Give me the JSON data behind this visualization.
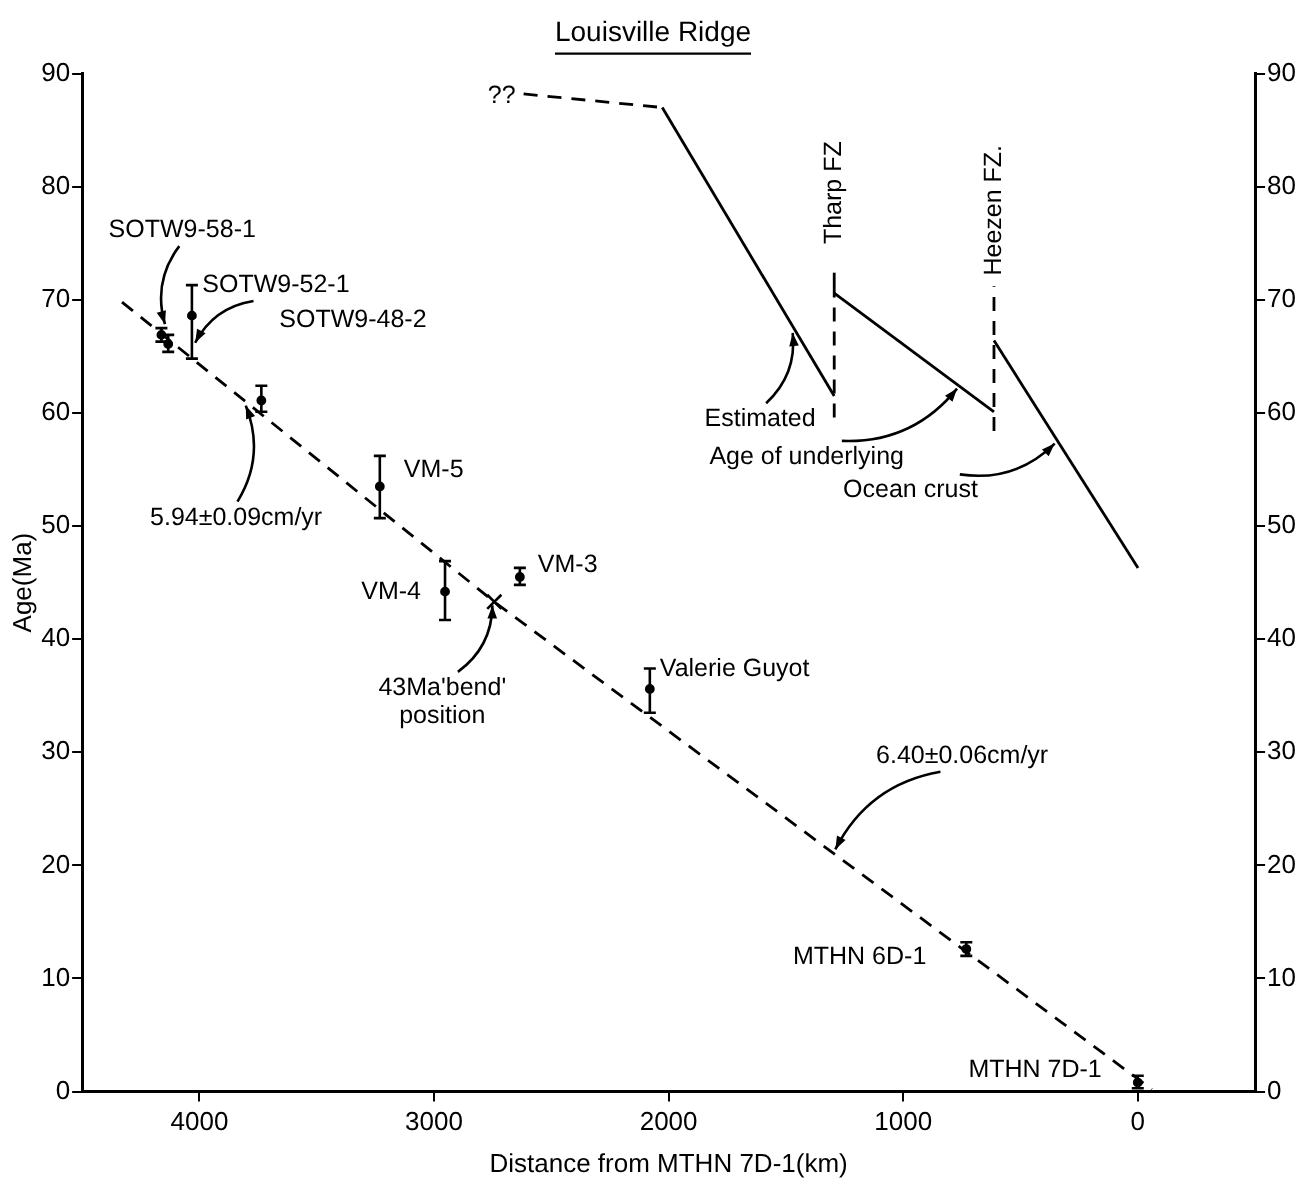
{
  "chart_data": {
    "type": "scatter",
    "title": "Louisville Ridge",
    "xlabel": "Distance from MTHN 7D-1(km)",
    "ylabel": "Age(Ma)",
    "xlim": [
      4500,
      -500
    ],
    "xticks": [
      4000,
      3000,
      2000,
      1000,
      0
    ],
    "ylim": [
      0,
      90
    ],
    "yticks": [
      0,
      10,
      20,
      30,
      40,
      50,
      60,
      70,
      80,
      90
    ],
    "y2lim": [
      0,
      90
    ],
    "y2ticks": [
      0,
      10,
      20,
      30,
      40,
      50,
      60,
      70,
      80,
      90
    ],
    "grid": false,
    "legend": false,
    "series": [
      {
        "type": "scatter",
        "color": "#000000",
        "marker": "circle",
        "x": [
          4162,
          4133,
          4032,
          3736,
          3231,
          2953,
          2634,
          2080,
          731,
          0
        ],
        "values": [
          66.9,
          66.1,
          68.6,
          61.1,
          53.5,
          44.2,
          45.5,
          35.6,
          12.6,
          0.8
        ],
        "errors": [
          [
            66.3,
            67.5
          ],
          [
            65.4,
            66.9
          ],
          [
            64.8,
            71.3
          ],
          [
            60.1,
            62.4
          ],
          [
            50.7,
            56.2
          ],
          [
            41.7,
            46.9
          ],
          [
            44.8,
            46.3
          ],
          [
            33.5,
            37.4
          ],
          [
            12.0,
            13.2
          ],
          [
            0.3,
            1.4
          ]
        ]
      },
      {
        "type": "scatter",
        "color": "#000000",
        "marker": "cross",
        "x": [
          2743
        ],
        "values": [
          43.3
        ]
      },
      {
        "type": "line",
        "color": "#000000",
        "line_style": "dashed",
        "marker": "none",
        "x": [
          4330,
          2743,
          -60
        ],
        "values": [
          69.8,
          43.3,
          0.2
        ]
      },
      {
        "type": "line",
        "color": "#000000",
        "line_style": "dashed",
        "marker": "none",
        "x": [
          2618,
          2027
        ],
        "values": [
          88.2,
          87.0
        ]
      },
      {
        "type": "line",
        "color": "#000000",
        "line_style": "solid",
        "marker": "none",
        "x": [
          2027,
          1294
        ],
        "values": [
          87.0,
          61.5
        ]
      },
      {
        "type": "line",
        "color": "#000000",
        "line_style": "solid",
        "marker": "none",
        "x": [
          1294,
          613
        ],
        "values": [
          70.6,
          60.1
        ]
      },
      {
        "type": "line",
        "color": "#000000",
        "line_style": "solid",
        "marker": "none",
        "x": [
          613,
          -1
        ],
        "values": [
          66.4,
          46.3
        ]
      },
      {
        "type": "line",
        "color": "#000000",
        "line_style": "dashed",
        "marker": "none",
        "x": [
          1294,
          1294
        ],
        "values": [
          59.6,
          70.6
        ]
      },
      {
        "type": "line",
        "color": "#000000",
        "line_style": "solid",
        "marker": "none",
        "x": [
          1294,
          1294
        ],
        "values": [
          70.6,
          72.4
        ]
      },
      {
        "type": "line",
        "color": "#000000",
        "line_style": "dashed",
        "marker": "none",
        "x": [
          613,
          613
        ],
        "values": [
          58.4,
          71.2
        ]
      }
    ],
    "annotations": [
      {
        "text": "??",
        "x": 2618,
        "y": 88.2
      },
      {
        "text": "SOTW9-58-1",
        "x": 4150,
        "y": 67.5
      },
      {
        "text": "SOTW9-52-1",
        "x": 4032,
        "y": 66
      },
      {
        "text": "SOTW9-48-2",
        "x": 3736,
        "y": 61.1
      },
      {
        "text": "VM-5",
        "x": 3231,
        "y": 53.5
      },
      {
        "text": "VM-4",
        "x": 2953,
        "y": 44.2
      },
      {
        "text": "VM-3",
        "x": 2634,
        "y": 45.5
      },
      {
        "text": "43Ma'bend' position",
        "x": 2743,
        "y": 43.3
      },
      {
        "text": "5.94±0.09cm/yr",
        "x": 3801,
        "y": 61.0
      },
      {
        "text": "Valerie Guyot",
        "x": 2080,
        "y": 35.6
      },
      {
        "text": "6.40±0.06cm/yr",
        "x": 1303,
        "y": 21.2
      },
      {
        "text": "MTHN 6D-1",
        "x": 731,
        "y": 12.6
      },
      {
        "text": "MTHN 7D-1",
        "x": 0,
        "y": 0.8
      },
      {
        "text": "Tharp FZ",
        "x": 1294,
        "y": 72.4
      },
      {
        "text": "Heezen FZ.",
        "x": 613,
        "y": 71.2
      },
      {
        "text": "Estimated",
        "x": 1465,
        "y": 67.4
      },
      {
        "text": "Age of underlying",
        "x": 755,
        "y": 62.3
      },
      {
        "text": "Ocean crust",
        "x": 338,
        "y": 57.4
      }
    ]
  }
}
